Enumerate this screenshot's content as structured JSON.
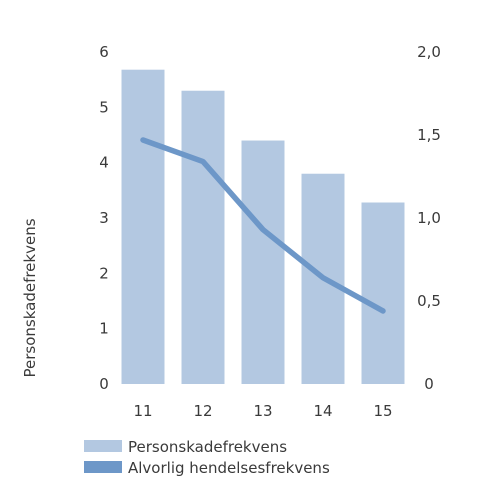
{
  "chart_data": {
    "type": "bar",
    "categories": [
      "11",
      "12",
      "13",
      "14",
      "15"
    ],
    "ylabel": "Personskadefrekvens",
    "ylim": [
      0,
      6
    ],
    "y2lim": [
      0,
      2.0
    ],
    "y_ticks": [
      "0",
      "1",
      "2",
      "3",
      "4",
      "5",
      "6"
    ],
    "y2_ticks": [
      "0",
      "0,5",
      "1,0",
      "1,5",
      "2,0"
    ],
    "grid": false,
    "legend_position": "bottom-left",
    "series": [
      {
        "name": "Personskadefrekvens",
        "type": "bar",
        "axis": "left",
        "color": "#b3c8e1",
        "values": [
          5.68,
          5.3,
          4.4,
          3.8,
          3.28
        ]
      },
      {
        "name": "Alvorlig hendelsesfrekvens",
        "type": "line",
        "axis": "right",
        "color": "#6d97c8",
        "values": [
          1.47,
          1.34,
          0.93,
          0.64,
          0.44
        ]
      }
    ]
  }
}
